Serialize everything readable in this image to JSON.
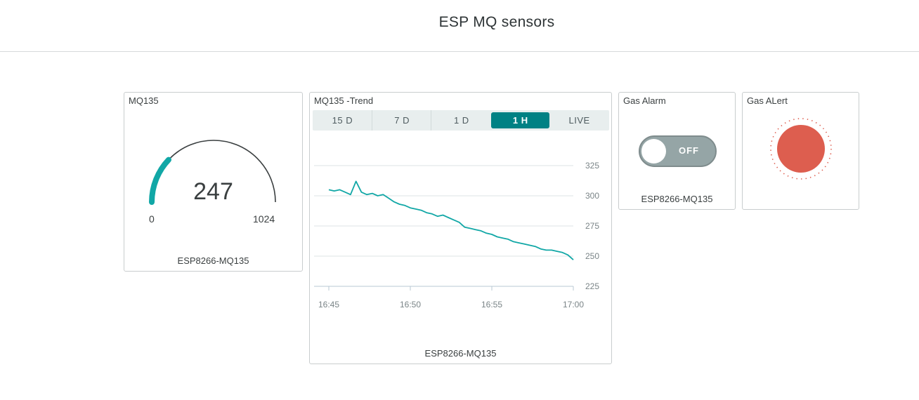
{
  "header": {
    "title": "ESP MQ sensors"
  },
  "gauge": {
    "title": "MQ135",
    "value": "247",
    "min": "0",
    "max": "1024",
    "level_fraction": 0.241,
    "device": "ESP8266-MQ135",
    "color": "#11a7a6"
  },
  "trend": {
    "title": "MQ135 -Trend",
    "device": "ESP8266-MQ135",
    "tabs": [
      {
        "label": "15 D",
        "active": false
      },
      {
        "label": "7 D",
        "active": false
      },
      {
        "label": "1 D",
        "active": false
      },
      {
        "label": "1 H",
        "active": true
      },
      {
        "label": "LIVE",
        "active": false
      }
    ]
  },
  "chart_data": {
    "type": "line",
    "title": "",
    "xlabel": "",
    "ylabel": "",
    "x_ticks": [
      "16:45",
      "16:50",
      "16:55",
      "17:00"
    ],
    "y_ticks": [
      325,
      300,
      275,
      250,
      225
    ],
    "xlim_minutes": [
      "16:45",
      "17:00"
    ],
    "ylim": [
      225,
      325
    ],
    "series": [
      {
        "color": "#11a7a6",
        "x": [
          "16:45:00",
          "16:45:20",
          "16:45:40",
          "16:46:00",
          "16:46:20",
          "16:46:40",
          "16:47:00",
          "16:47:20",
          "16:47:40",
          "16:48:00",
          "16:48:20",
          "16:48:40",
          "16:49:00",
          "16:49:20",
          "16:49:40",
          "16:50:00",
          "16:50:20",
          "16:50:40",
          "16:51:00",
          "16:51:20",
          "16:51:40",
          "16:52:00",
          "16:52:20",
          "16:52:40",
          "16:53:00",
          "16:53:20",
          "16:53:40",
          "16:54:00",
          "16:54:20",
          "16:54:40",
          "16:55:00",
          "16:55:20",
          "16:55:40",
          "16:56:00",
          "16:56:20",
          "16:56:40",
          "16:57:00",
          "16:57:20",
          "16:57:40",
          "16:58:00",
          "16:58:20",
          "16:58:40",
          "16:59:00",
          "16:59:20",
          "16:59:40",
          "17:00:00"
        ],
        "values": [
          305,
          304,
          305,
          303,
          301,
          312,
          303,
          301,
          302,
          300,
          301,
          298,
          295,
          293,
          292,
          290,
          289,
          288,
          286,
          285,
          283,
          284,
          282,
          280,
          278,
          274,
          273,
          272,
          271,
          269,
          268,
          266,
          265,
          264,
          262,
          261,
          260,
          259,
          258,
          256,
          255,
          255,
          254,
          253,
          251,
          247
        ]
      }
    ]
  },
  "switch": {
    "title": "Gas Alarm",
    "state_label": "OFF",
    "device": "ESP8266-MQ135"
  },
  "led": {
    "title": "Gas ALert",
    "color": "#dd5e4f"
  }
}
